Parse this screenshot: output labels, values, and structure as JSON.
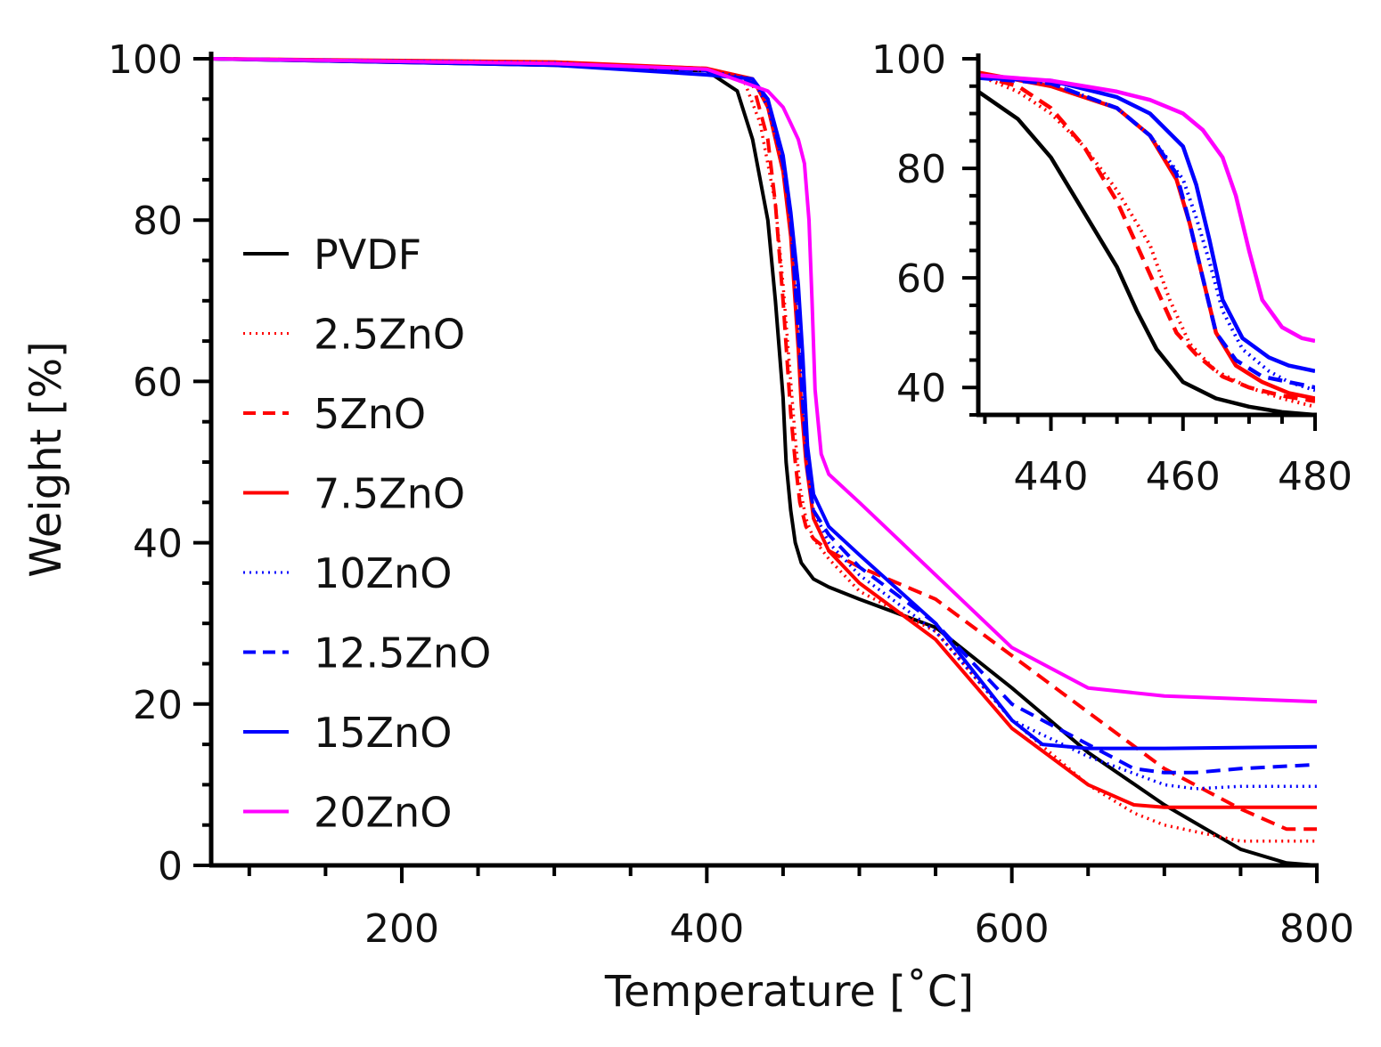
{
  "chart_data": [
    {
      "type": "line",
      "name": "main",
      "xlabel": "Temperature [˚C]",
      "ylabel": "Weight [%]",
      "xlim": [
        75,
        800
      ],
      "ylim": [
        0,
        100
      ],
      "xticks": [
        {
          "value": 200,
          "label": "200"
        },
        {
          "value": 400,
          "label": "400"
        },
        {
          "value": 600,
          "label": "600"
        },
        {
          "value": 800,
          "label": "800"
        }
      ],
      "yticks": [
        {
          "value": 0,
          "label": "0"
        },
        {
          "value": 20,
          "label": "20"
        },
        {
          "value": 40,
          "label": "40"
        },
        {
          "value": 60,
          "label": "60"
        },
        {
          "value": 80,
          "label": "80"
        },
        {
          "value": 100,
          "label": "100"
        }
      ],
      "legend_position": "center-left",
      "series": [
        {
          "name": "PVDF",
          "color": "#000000",
          "style": "solid",
          "x": [
            75,
            300,
            400,
            420,
            430,
            440,
            445,
            450,
            452,
            455,
            458,
            462,
            470,
            480,
            500,
            550,
            600,
            650,
            700,
            750,
            780,
            800
          ],
          "y": [
            100,
            99.2,
            98.5,
            96,
            90,
            80,
            70,
            58,
            50,
            44,
            40,
            37.5,
            35.5,
            34.5,
            33,
            29.5,
            22,
            14,
            7.5,
            2,
            0.3,
            0
          ]
        },
        {
          "name": "2.5ZnO",
          "color": "#ff0000",
          "style": "dotted",
          "x": [
            75,
            300,
            400,
            425,
            435,
            445,
            450,
            455,
            458,
            461,
            465,
            470,
            480,
            500,
            550,
            600,
            650,
            680,
            700,
            750,
            800
          ],
          "y": [
            100,
            99.5,
            98.7,
            97,
            92,
            82,
            72,
            60,
            53,
            47,
            43,
            40.5,
            38,
            34,
            29,
            18,
            10,
            6.5,
            5,
            3,
            3
          ]
        },
        {
          "name": "5ZnO",
          "color": "#ff0000",
          "style": "dashed",
          "x": [
            75,
            300,
            400,
            430,
            440,
            445,
            450,
            455,
            458,
            461,
            465,
            470,
            480,
            500,
            550,
            600,
            650,
            700,
            750,
            780,
            800
          ],
          "y": [
            100,
            99.5,
            98.8,
            97,
            90,
            82,
            70,
            56,
            50,
            45,
            42,
            40.5,
            39,
            37,
            33,
            26,
            19,
            12,
            7,
            4.5,
            4.5
          ]
        },
        {
          "name": "7.5ZnO",
          "color": "#ff0000",
          "style": "solid",
          "x": [
            75,
            300,
            400,
            430,
            440,
            450,
            455,
            460,
            462,
            465,
            470,
            480,
            500,
            550,
            600,
            650,
            680,
            700,
            750,
            800
          ],
          "y": [
            100,
            99.6,
            98.8,
            97.5,
            94,
            86,
            78,
            64,
            57,
            50,
            43,
            39,
            35,
            28,
            17,
            10,
            7.5,
            7.2,
            7.2,
            7.2
          ]
        },
        {
          "name": "10ZnO",
          "color": "#0000ff",
          "style": "dotted",
          "x": [
            75,
            300,
            400,
            430,
            440,
            450,
            455,
            460,
            463,
            466,
            470,
            480,
            500,
            550,
            600,
            650,
            700,
            720,
            750,
            800
          ],
          "y": [
            100,
            99.5,
            98.5,
            97.5,
            94,
            87,
            80,
            68,
            58,
            50,
            44,
            40,
            36,
            29,
            18,
            13.5,
            10,
            9.5,
            9.8,
            9.8
          ]
        },
        {
          "name": "12.5ZnO",
          "color": "#0000ff",
          "style": "dashed",
          "x": [
            75,
            300,
            400,
            430,
            440,
            450,
            455,
            460,
            463,
            466,
            470,
            480,
            500,
            550,
            600,
            650,
            680,
            700,
            720,
            750,
            800
          ],
          "y": [
            100,
            99.4,
            98.5,
            97,
            95,
            87,
            80,
            66,
            57,
            49,
            44,
            41,
            37,
            30,
            20,
            15,
            12,
            11.5,
            11.5,
            12,
            12.5
          ]
        },
        {
          "name": "15ZnO",
          "color": "#0000ff",
          "style": "solid",
          "x": [
            75,
            300,
            400,
            430,
            440,
            450,
            455,
            460,
            463,
            466,
            470,
            480,
            500,
            550,
            600,
            620,
            650,
            700,
            800
          ],
          "y": [
            100,
            99.2,
            98,
            97.5,
            95,
            88,
            81,
            72,
            63,
            52,
            46,
            42,
            38.5,
            30,
            18,
            15,
            14.5,
            14.5,
            14.7
          ]
        },
        {
          "name": "20ZnO",
          "color": "#ff00ff",
          "style": "solid",
          "x": [
            75,
            300,
            400,
            440,
            450,
            455,
            460,
            464,
            467,
            469,
            471,
            475,
            480,
            500,
            550,
            600,
            650,
            700,
            800
          ],
          "y": [
            100,
            99.4,
            98.7,
            96,
            94,
            92,
            90,
            87,
            80,
            70,
            59,
            51,
            48.5,
            45,
            36,
            27,
            22,
            21,
            20.3
          ]
        }
      ]
    },
    {
      "type": "line",
      "name": "inset",
      "xlabel": "",
      "ylabel": "",
      "xlim": [
        429,
        480
      ],
      "ylim": [
        35,
        100
      ],
      "xticks": [
        {
          "value": 440,
          "label": "440"
        },
        {
          "value": 460,
          "label": "460"
        },
        {
          "value": 480,
          "label": "480"
        }
      ],
      "yticks": [
        {
          "value": 40,
          "label": "40"
        },
        {
          "value": 60,
          "label": "60"
        },
        {
          "value": 80,
          "label": "80"
        },
        {
          "value": 100,
          "label": "100"
        }
      ],
      "series": [
        {
          "name": "PVDF",
          "color": "#000000",
          "style": "solid",
          "x": [
            429,
            435,
            440,
            445,
            450,
            453,
            456,
            460,
            465,
            470,
            475,
            480
          ],
          "y": [
            94,
            89,
            82,
            72,
            62,
            54,
            47,
            41,
            38,
            36.5,
            35.5,
            35
          ]
        },
        {
          "name": "2.5ZnO",
          "color": "#ff0000",
          "style": "dotted",
          "x": [
            429,
            435,
            440,
            445,
            450,
            455,
            458,
            461,
            465,
            470,
            475,
            480
          ],
          "y": [
            97,
            94,
            90,
            84,
            76,
            66,
            56,
            48,
            43,
            40,
            38,
            36.5
          ]
        },
        {
          "name": "5ZnO",
          "color": "#ff0000",
          "style": "dashed",
          "x": [
            429,
            435,
            440,
            445,
            450,
            453,
            456,
            459,
            462,
            466,
            470,
            475,
            480
          ],
          "y": [
            97,
            95,
            91,
            84,
            74,
            66,
            58,
            50,
            46,
            42,
            40,
            38.5,
            37.5
          ]
        },
        {
          "name": "7.5ZnO",
          "color": "#ff0000",
          "style": "solid",
          "x": [
            429,
            440,
            450,
            455,
            459,
            461,
            463,
            465,
            468,
            472,
            476,
            480
          ],
          "y": [
            97.5,
            95,
            91,
            86,
            78,
            70,
            60,
            50,
            44,
            41,
            39,
            38
          ]
        },
        {
          "name": "10ZnO",
          "color": "#0000ff",
          "style": "dotted",
          "x": [
            429,
            440,
            450,
            455,
            460,
            462,
            464,
            466,
            469,
            473,
            476,
            480
          ],
          "y": [
            97,
            95.5,
            91,
            86,
            78,
            71,
            63,
            54,
            47,
            43,
            41,
            39.5
          ]
        },
        {
          "name": "12.5ZnO",
          "color": "#0000ff",
          "style": "dashed",
          "x": [
            429,
            440,
            450,
            455,
            459,
            461,
            463,
            465,
            468,
            472,
            476,
            480
          ],
          "y": [
            96.5,
            95.5,
            91,
            86,
            79,
            70,
            60,
            50,
            45,
            42,
            41,
            40
          ]
        },
        {
          "name": "15ZnO",
          "color": "#0000ff",
          "style": "solid",
          "x": [
            429,
            440,
            450,
            455,
            460,
            462,
            464,
            466,
            469,
            473,
            476,
            480
          ],
          "y": [
            96.5,
            96,
            93,
            90,
            84,
            77,
            67,
            56,
            49,
            45.5,
            44,
            43
          ]
        },
        {
          "name": "20ZnO",
          "color": "#ff00ff",
          "style": "solid",
          "x": [
            429,
            440,
            450,
            455,
            460,
            463,
            466,
            468,
            470,
            472,
            475,
            478,
            480
          ],
          "y": [
            97,
            96,
            94,
            92.5,
            90,
            87,
            82,
            75,
            65,
            56,
            51,
            49,
            48.5
          ]
        }
      ]
    }
  ]
}
